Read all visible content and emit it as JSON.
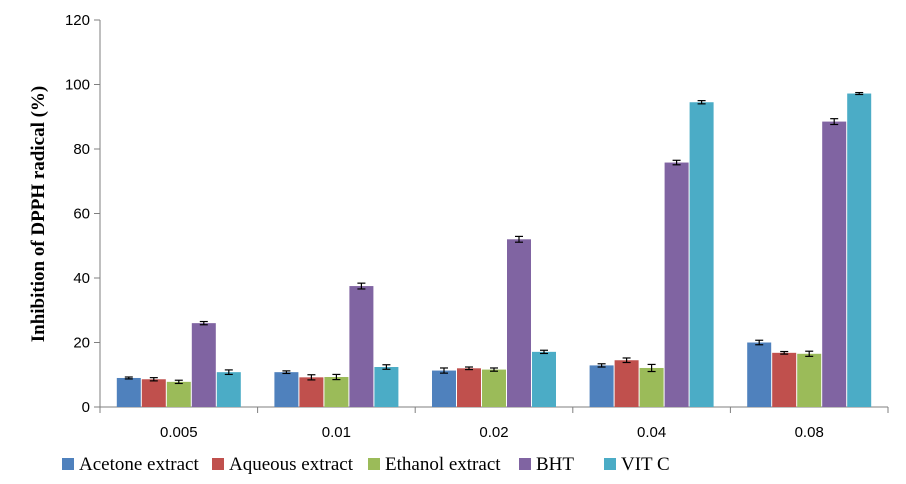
{
  "chart_data": {
    "type": "bar",
    "title": "",
    "xlabel": "",
    "ylabel": "Inhibition of DPPH radical (%)",
    "ylim": [
      0,
      120
    ],
    "yticks": [
      0,
      20,
      40,
      60,
      80,
      100,
      120
    ],
    "grid": false,
    "legend_position": "bottom",
    "categories": [
      "0.005",
      "0.01",
      "0.02",
      "0.04",
      "0.08"
    ],
    "series": [
      {
        "name": "Acetone extract",
        "color": "#4F81BD",
        "values": [
          9.0,
          10.8,
          11.3,
          12.9,
          20.0
        ],
        "errors": [
          0.3,
          0.4,
          0.8,
          0.5,
          0.7
        ]
      },
      {
        "name": "Aqueous extract",
        "color": "#C0504D",
        "values": [
          8.6,
          9.2,
          12.0,
          14.5,
          16.8
        ],
        "errors": [
          0.5,
          0.8,
          0.4,
          0.7,
          0.4
        ]
      },
      {
        "name": "Ethanol extract",
        "color": "#9BBB59",
        "values": [
          7.8,
          9.3,
          11.6,
          12.1,
          16.5
        ],
        "errors": [
          0.5,
          0.8,
          0.5,
          1.1,
          0.8
        ]
      },
      {
        "name": "BHT",
        "color": "#8064A2",
        "values": [
          26.0,
          37.5,
          52.0,
          75.8,
          88.5
        ],
        "errors": [
          0.5,
          0.9,
          0.9,
          0.7,
          0.9
        ]
      },
      {
        "name": "VIT C",
        "color": "#4BACC6",
        "values": [
          10.8,
          12.4,
          17.1,
          94.5,
          97.2
        ],
        "errors": [
          0.7,
          0.7,
          0.5,
          0.5,
          0.3
        ]
      }
    ]
  }
}
